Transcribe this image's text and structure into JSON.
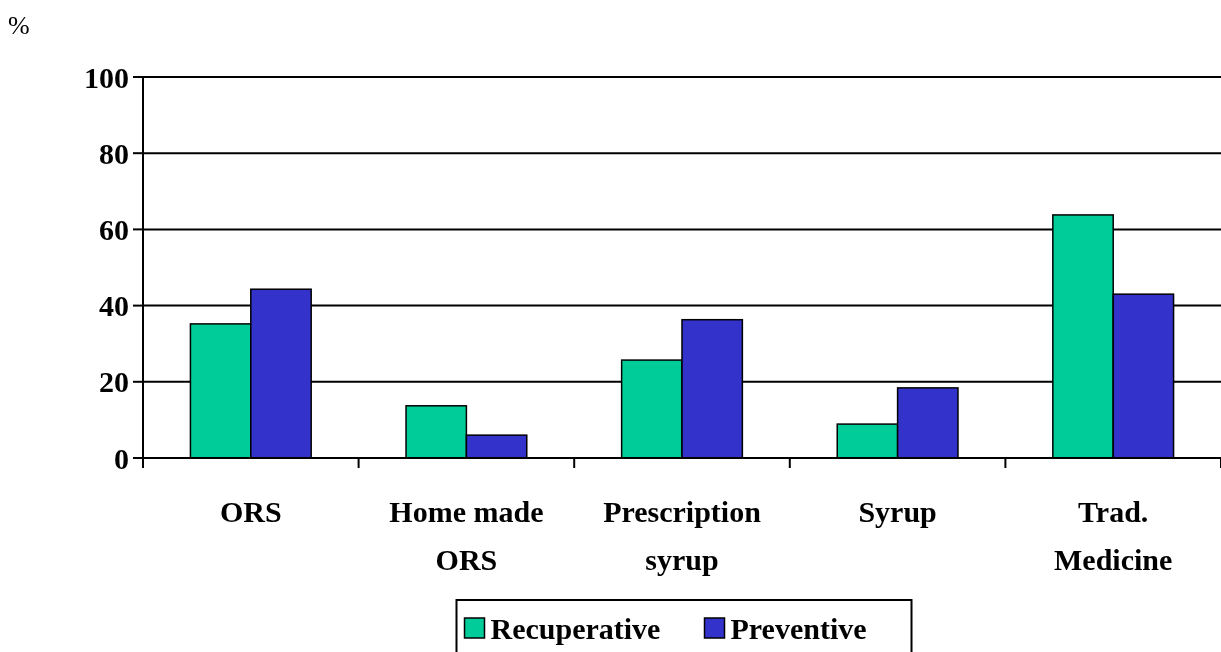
{
  "chart_data": {
    "type": "bar",
    "ylabel": "%",
    "categories": [
      "ORS",
      "Home made ORS",
      "Prescription syrup",
      "Syrup",
      "Trad. Medicine"
    ],
    "series": [
      {
        "name": "Recuperative",
        "color": "#00cc99",
        "values": [
          35.2,
          13.7,
          25.7,
          8.9,
          63.8
        ]
      },
      {
        "name": "Preventive",
        "color": "#3333cc",
        "values": [
          44.3,
          6.0,
          36.3,
          18.4,
          43.0
        ]
      }
    ],
    "ylim": [
      0,
      100
    ],
    "yticks": [
      0,
      20,
      40,
      60,
      80,
      100
    ],
    "grid": "y",
    "legend": "bottom"
  }
}
